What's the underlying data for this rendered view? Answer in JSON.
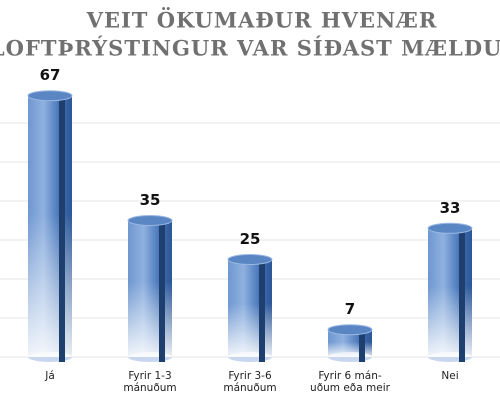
{
  "chart_data": {
    "type": "bar",
    "title": [
      "VEIT ÖKUMAÐUR HVENÆR",
      "LOFTÞRÝSTINGUR VAR SÍÐAST MÆLDUR?"
    ],
    "categories": [
      [
        "Já"
      ],
      [
        "Fyrir 1-3",
        "mánuðum"
      ],
      [
        "Fyrir 3-6",
        "mánuðum"
      ],
      [
        "Fyrir 6 mán-",
        "uðum eða meir"
      ],
      [
        "Nei"
      ]
    ],
    "values": [
      67,
      35,
      25,
      7,
      33
    ],
    "color": "#3f6fb5",
    "ylim": [
      0,
      70
    ],
    "yticks": [
      0,
      10,
      20,
      30,
      40,
      50,
      60
    ],
    "show_ytick_labels": false,
    "grid": true
  }
}
